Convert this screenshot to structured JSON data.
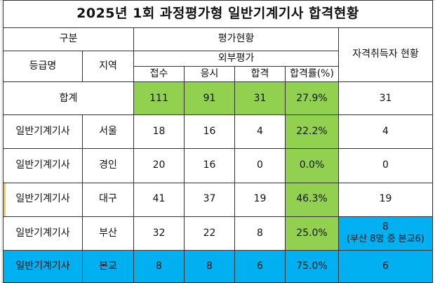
{
  "title": "2025년 1회 과정평가형 일반기계기사 합격현황",
  "headers": {
    "group": "구분",
    "grade": "등급명",
    "region": "지역",
    "evaluation": "평가현황",
    "external": "외부평가",
    "applied": "접수",
    "took": "응시",
    "passed": "합격",
    "pass_rate": "합격률(%)",
    "certified": "자격취득자 현황"
  },
  "total": {
    "label": "합계",
    "applied": "111",
    "took": "91",
    "passed": "31",
    "pass_rate": "27.9%",
    "certified": "31"
  },
  "rows": [
    {
      "grade": "일반기계기사",
      "region": "서울",
      "applied": "18",
      "took": "16",
      "passed": "4",
      "pass_rate": "22.2%",
      "certified": "4"
    },
    {
      "grade": "일반기계기사",
      "region": "경인",
      "applied": "20",
      "took": "16",
      "passed": "0",
      "pass_rate": "0.0%",
      "certified": "0"
    },
    {
      "grade": "일반기계기사",
      "region": "대구",
      "applied": "41",
      "took": "37",
      "passed": "19",
      "pass_rate": "46.3%",
      "certified": "19"
    },
    {
      "grade": "일반기계기사",
      "region": "부산",
      "applied": "32",
      "took": "22",
      "passed": "8",
      "pass_rate": "25.0%",
      "certified": "8",
      "certified_note": "(부산 8명 중 본교6)"
    },
    {
      "grade": "일반기계기사",
      "region": "본교",
      "applied": "8",
      "took": "8",
      "passed": "6",
      "pass_rate": "75.0%",
      "certified": "6"
    }
  ],
  "colors": {
    "highlight_green": "#92d050",
    "highlight_blue": "#00b0f0",
    "border": "#333333"
  }
}
